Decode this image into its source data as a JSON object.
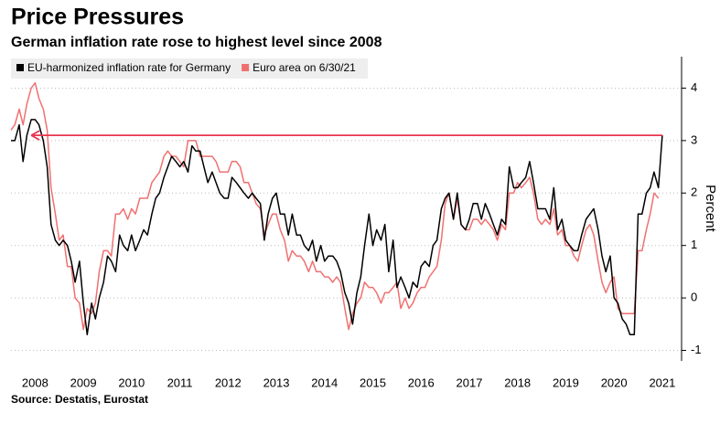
{
  "chart_data": {
    "type": "line",
    "title": "Price Pressures",
    "subtitle": "German inflation rate rose to highest level since 2008",
    "source": "Source: Destatis, Eurostat",
    "y_label": "Percent",
    "x": [
      2008,
      2008.08,
      2008.17,
      2008.25,
      2008.33,
      2008.42,
      2008.5,
      2008.58,
      2008.67,
      2008.75,
      2008.83,
      2008.92,
      2009,
      2009.08,
      2009.17,
      2009.25,
      2009.33,
      2009.42,
      2009.5,
      2009.58,
      2009.67,
      2009.75,
      2009.83,
      2009.92,
      2010,
      2010.08,
      2010.17,
      2010.25,
      2010.33,
      2010.42,
      2010.5,
      2010.58,
      2010.67,
      2010.75,
      2010.83,
      2010.92,
      2011,
      2011.08,
      2011.17,
      2011.25,
      2011.33,
      2011.42,
      2011.5,
      2011.58,
      2011.67,
      2011.75,
      2011.83,
      2011.92,
      2012,
      2012.08,
      2012.17,
      2012.25,
      2012.33,
      2012.42,
      2012.5,
      2012.58,
      2012.67,
      2012.75,
      2012.83,
      2012.92,
      2013,
      2013.08,
      2013.17,
      2013.25,
      2013.33,
      2013.42,
      2013.5,
      2013.58,
      2013.67,
      2013.75,
      2013.83,
      2013.92,
      2014,
      2014.08,
      2014.17,
      2014.25,
      2014.33,
      2014.42,
      2014.5,
      2014.58,
      2014.67,
      2014.75,
      2014.83,
      2014.92,
      2015,
      2015.08,
      2015.17,
      2015.25,
      2015.33,
      2015.42,
      2015.5,
      2015.58,
      2015.67,
      2015.75,
      2015.83,
      2015.92,
      2016,
      2016.08,
      2016.17,
      2016.25,
      2016.33,
      2016.42,
      2016.5,
      2016.58,
      2016.67,
      2016.75,
      2016.83,
      2016.92,
      2017,
      2017.08,
      2017.17,
      2017.25,
      2017.33,
      2017.42,
      2017.5,
      2017.58,
      2017.67,
      2017.75,
      2017.83,
      2017.92,
      2018,
      2018.08,
      2018.17,
      2018.25,
      2018.33,
      2018.42,
      2018.5,
      2018.58,
      2018.67,
      2018.75,
      2018.83,
      2018.92,
      2019,
      2019.08,
      2019.17,
      2019.25,
      2019.33,
      2019.42,
      2019.5,
      2019.58,
      2019.67,
      2019.75,
      2019.83,
      2019.92,
      2020,
      2020.08,
      2020.17,
      2020.25,
      2020.33,
      2020.42,
      2020.5,
      2020.58,
      2020.67,
      2020.75,
      2020.83,
      2020.92,
      2021,
      2021.08,
      2021.17,
      2021.25,
      2021.33,
      2021.42,
      2021.5
    ],
    "series": [
      {
        "name": "EU-harmonized inflation rate for Germany",
        "color": "#000000",
        "values": [
          3.0,
          3.0,
          3.3,
          2.6,
          3.1,
          3.4,
          3.4,
          3.3,
          3.0,
          2.5,
          1.4,
          1.1,
          1.0,
          1.1,
          1.0,
          0.7,
          0.3,
          0.7,
          -0.1,
          -0.7,
          -0.1,
          -0.4,
          0.0,
          0.3,
          0.8,
          0.7,
          0.5,
          1.2,
          1.0,
          0.9,
          1.2,
          0.9,
          1.1,
          1.3,
          1.2,
          1.6,
          1.9,
          2.0,
          2.3,
          2.5,
          2.7,
          2.6,
          2.5,
          2.6,
          2.4,
          2.9,
          2.8,
          2.8,
          2.5,
          2.2,
          2.4,
          2.2,
          2.0,
          1.9,
          1.9,
          2.3,
          2.2,
          2.1,
          2.0,
          1.9,
          2.0,
          1.9,
          1.8,
          1.1,
          1.6,
          1.9,
          2.0,
          1.6,
          1.6,
          1.2,
          1.6,
          1.2,
          1.2,
          1.0,
          0.9,
          1.1,
          0.7,
          1.0,
          0.7,
          0.8,
          0.8,
          0.7,
          0.5,
          0.1,
          -0.1,
          -0.5,
          0.1,
          0.4,
          1.0,
          1.6,
          1.0,
          1.3,
          1.1,
          1.4,
          0.5,
          1.1,
          0.2,
          0.4,
          0.2,
          0.0,
          0.3,
          0.2,
          0.6,
          0.7,
          0.6,
          1.0,
          1.1,
          1.7,
          1.9,
          2.0,
          1.5,
          2.0,
          1.4,
          1.3,
          1.5,
          1.8,
          1.8,
          1.5,
          1.8,
          1.6,
          1.4,
          1.2,
          1.5,
          1.4,
          2.5,
          2.1,
          2.1,
          2.2,
          2.3,
          2.6,
          2.2,
          1.7,
          1.7,
          1.7,
          1.5,
          2.1,
          1.3,
          1.5,
          1.1,
          1.0,
          0.9,
          0.9,
          1.2,
          1.5,
          1.6,
          1.7,
          1.3,
          0.8,
          0.5,
          0.8,
          0.0,
          -0.1,
          -0.4,
          -0.5,
          -0.7,
          -0.7,
          1.6,
          1.6,
          2.0,
          2.1,
          2.4,
          2.1,
          3.1
        ]
      },
      {
        "name": "Euro area on 6/30/21",
        "color": "#f07070",
        "values": [
          3.2,
          3.3,
          3.6,
          3.3,
          3.7,
          4.0,
          4.1,
          3.8,
          3.6,
          3.2,
          2.1,
          1.6,
          1.1,
          1.2,
          0.6,
          0.6,
          0.0,
          -0.1,
          -0.6,
          -0.2,
          -0.3,
          -0.1,
          0.5,
          0.9,
          0.9,
          0.8,
          1.6,
          1.6,
          1.7,
          1.5,
          1.7,
          1.6,
          1.9,
          1.9,
          1.9,
          2.2,
          2.3,
          2.4,
          2.7,
          2.8,
          2.7,
          2.7,
          2.6,
          2.5,
          3.0,
          3.0,
          3.0,
          2.7,
          2.7,
          2.7,
          2.7,
          2.6,
          2.4,
          2.4,
          2.4,
          2.6,
          2.6,
          2.5,
          2.2,
          2.2,
          2.0,
          1.8,
          1.7,
          1.2,
          1.4,
          1.6,
          1.6,
          1.3,
          1.1,
          0.7,
          0.9,
          0.8,
          0.8,
          0.7,
          0.5,
          0.7,
          0.5,
          0.5,
          0.4,
          0.4,
          0.3,
          0.4,
          0.3,
          -0.2,
          -0.6,
          -0.3,
          -0.1,
          0.0,
          0.3,
          0.2,
          0.2,
          0.1,
          -0.1,
          0.1,
          0.1,
          0.2,
          0.3,
          -0.2,
          0.0,
          -0.2,
          -0.1,
          0.1,
          0.2,
          0.2,
          0.4,
          0.5,
          0.6,
          1.1,
          1.8,
          2.0,
          1.5,
          1.9,
          1.4,
          1.3,
          1.3,
          1.5,
          1.5,
          1.4,
          1.5,
          1.4,
          1.3,
          1.1,
          1.4,
          1.3,
          2.0,
          2.0,
          2.2,
          2.1,
          2.2,
          2.3,
          2.0,
          1.5,
          1.4,
          1.5,
          1.4,
          1.7,
          1.2,
          1.3,
          1.0,
          1.0,
          0.8,
          0.7,
          1.0,
          1.3,
          1.4,
          1.2,
          0.7,
          0.3,
          0.1,
          0.3,
          0.4,
          -0.2,
          -0.3,
          -0.3,
          -0.3,
          -0.3,
          0.9,
          0.9,
          1.3,
          1.6,
          2.0,
          1.9,
          null
        ]
      }
    ],
    "annotation_arrow": {
      "y": 3.1,
      "from": 2021.5,
      "to": 2008.42,
      "color": "#e8344e"
    },
    "xlim": [
      2008,
      2021.9
    ],
    "xticks": [
      {
        "value": 2008.5,
        "label": "2008"
      },
      {
        "value": 2009.5,
        "label": "2009"
      },
      {
        "value": 2010.5,
        "label": "2010"
      },
      {
        "value": 2011.5,
        "label": "2011"
      },
      {
        "value": 2012.5,
        "label": "2012"
      },
      {
        "value": 2013.5,
        "label": "2013"
      },
      {
        "value": 2014.5,
        "label": "2014"
      },
      {
        "value": 2015.5,
        "label": "2015"
      },
      {
        "value": 2016.5,
        "label": "2016"
      },
      {
        "value": 2017.5,
        "label": "2017"
      },
      {
        "value": 2018.5,
        "label": "2018"
      },
      {
        "value": 2019.5,
        "label": "2019"
      },
      {
        "value": 2020.5,
        "label": "2020"
      },
      {
        "value": 2021.5,
        "label": "2021"
      }
    ],
    "ylim": [
      -1.2,
      4.6
    ],
    "yticks": [
      -1,
      0,
      1,
      2,
      3,
      4
    ],
    "grid": true
  }
}
